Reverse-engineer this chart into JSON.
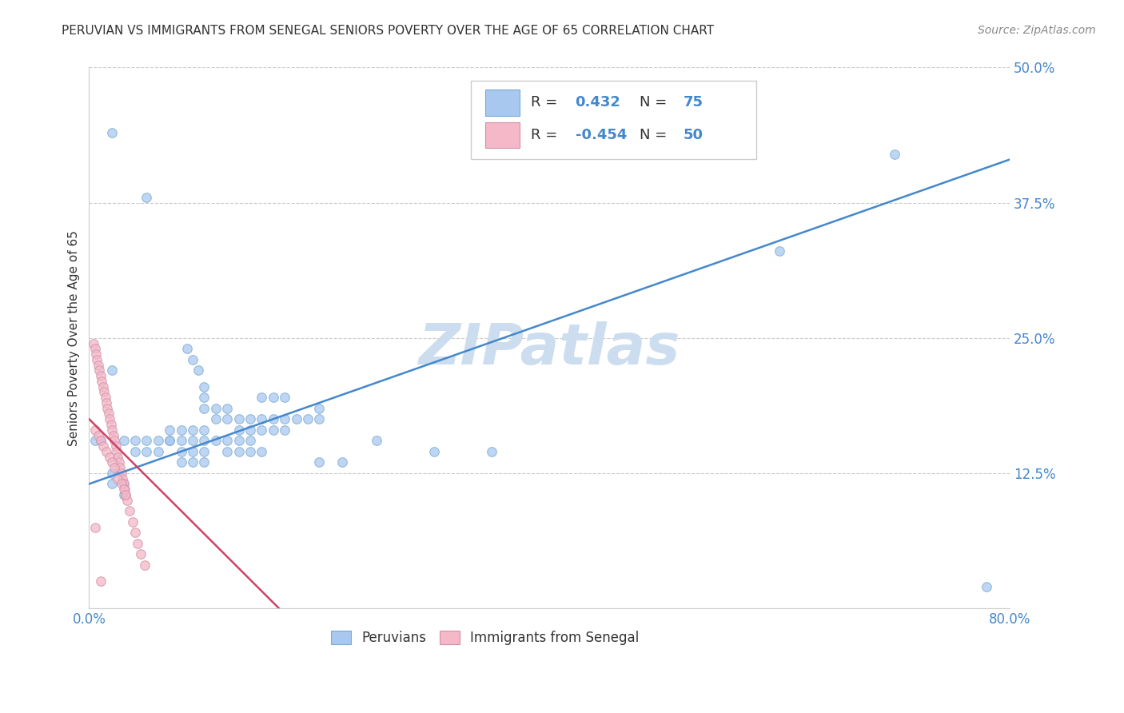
{
  "title": "PERUVIAN VS IMMIGRANTS FROM SENEGAL SENIORS POVERTY OVER THE AGE OF 65 CORRELATION CHART",
  "source": "Source: ZipAtlas.com",
  "ylabel": "Seniors Poverty Over the Age of 65",
  "xlim": [
    0.0,
    0.8
  ],
  "ylim": [
    0.0,
    0.5
  ],
  "xticks": [
    0.0,
    0.2,
    0.4,
    0.6,
    0.8
  ],
  "yticks": [
    0.0,
    0.125,
    0.25,
    0.375,
    0.5
  ],
  "xticklabels": [
    "0.0%",
    "",
    "",
    "",
    "80.0%"
  ],
  "yticklabels": [
    "",
    "12.5%",
    "25.0%",
    "37.5%",
    "50.0%"
  ],
  "background_color": "#ffffff",
  "grid_color": "#cccccc",
  "watermark": "ZIPatlas",
  "peruvian_color": "#a8c8f0",
  "senegal_color": "#f4b8c8",
  "peruvian_line_color": "#4488cc",
  "senegal_line_color": "#cc4466",
  "peruvian_edge_color": "#7aaad0",
  "senegal_edge_color": "#d090a8",
  "scatter_alpha": 0.75,
  "scatter_size": 70,
  "blue_scatter_x": [
    0.02,
    0.02,
    0.05,
    0.085,
    0.09,
    0.095,
    0.1,
    0.1,
    0.1,
    0.11,
    0.11,
    0.12,
    0.12,
    0.13,
    0.13,
    0.14,
    0.14,
    0.15,
    0.15,
    0.16,
    0.16,
    0.17,
    0.17,
    0.18,
    0.19,
    0.2,
    0.2,
    0.07,
    0.07,
    0.08,
    0.08,
    0.09,
    0.09,
    0.1,
    0.1,
    0.11,
    0.12,
    0.12,
    0.13,
    0.13,
    0.14,
    0.14,
    0.15,
    0.03,
    0.04,
    0.04,
    0.05,
    0.05,
    0.06,
    0.06,
    0.07,
    0.08,
    0.08,
    0.09,
    0.09,
    0.1,
    0.1,
    0.15,
    0.16,
    0.17,
    0.2,
    0.22,
    0.25,
    0.3,
    0.35,
    0.6,
    0.7,
    0.78,
    0.005,
    0.01,
    0.02,
    0.02,
    0.03,
    0.03
  ],
  "blue_scatter_y": [
    0.44,
    0.22,
    0.38,
    0.24,
    0.23,
    0.22,
    0.205,
    0.195,
    0.185,
    0.185,
    0.175,
    0.185,
    0.175,
    0.175,
    0.165,
    0.175,
    0.165,
    0.175,
    0.165,
    0.175,
    0.165,
    0.175,
    0.165,
    0.175,
    0.175,
    0.185,
    0.175,
    0.165,
    0.155,
    0.165,
    0.155,
    0.165,
    0.155,
    0.165,
    0.155,
    0.155,
    0.155,
    0.145,
    0.155,
    0.145,
    0.155,
    0.145,
    0.145,
    0.155,
    0.155,
    0.145,
    0.155,
    0.145,
    0.155,
    0.145,
    0.155,
    0.145,
    0.135,
    0.145,
    0.135,
    0.145,
    0.135,
    0.195,
    0.195,
    0.195,
    0.135,
    0.135,
    0.155,
    0.145,
    0.145,
    0.33,
    0.42,
    0.02,
    0.155,
    0.155,
    0.125,
    0.115,
    0.115,
    0.105
  ],
  "pink_scatter_x": [
    0.004,
    0.005,
    0.006,
    0.007,
    0.008,
    0.009,
    0.01,
    0.011,
    0.012,
    0.013,
    0.014,
    0.015,
    0.016,
    0.017,
    0.018,
    0.019,
    0.02,
    0.021,
    0.022,
    0.023,
    0.024,
    0.025,
    0.026,
    0.027,
    0.028,
    0.029,
    0.03,
    0.031,
    0.032,
    0.033,
    0.035,
    0.038,
    0.04,
    0.042,
    0.045,
    0.048,
    0.005,
    0.008,
    0.01,
    0.012,
    0.015,
    0.018,
    0.02,
    0.022,
    0.025,
    0.028,
    0.03,
    0.032,
    0.005,
    0.01
  ],
  "pink_scatter_y": [
    0.245,
    0.24,
    0.235,
    0.23,
    0.225,
    0.22,
    0.215,
    0.21,
    0.205,
    0.2,
    0.195,
    0.19,
    0.185,
    0.18,
    0.175,
    0.17,
    0.165,
    0.16,
    0.155,
    0.15,
    0.145,
    0.14,
    0.135,
    0.13,
    0.125,
    0.12,
    0.115,
    0.11,
    0.105,
    0.1,
    0.09,
    0.08,
    0.07,
    0.06,
    0.05,
    0.04,
    0.165,
    0.16,
    0.155,
    0.15,
    0.145,
    0.14,
    0.135,
    0.13,
    0.12,
    0.115,
    0.11,
    0.105,
    0.075,
    0.025
  ],
  "blue_line_x": [
    0.0,
    0.8
  ],
  "blue_line_y": [
    0.115,
    0.415
  ],
  "pink_line_x": [
    0.0,
    0.165
  ],
  "pink_line_y": [
    0.175,
    0.0
  ],
  "title_fontsize": 11,
  "axis_label_fontsize": 11,
  "tick_fontsize": 12,
  "source_fontsize": 10,
  "watermark_fontsize": 52,
  "watermark_color": "#ccddf0",
  "tick_color": "#4488cc",
  "bottom_legend_label1": "Peruvians",
  "bottom_legend_label2": "Immigrants from Senegal"
}
